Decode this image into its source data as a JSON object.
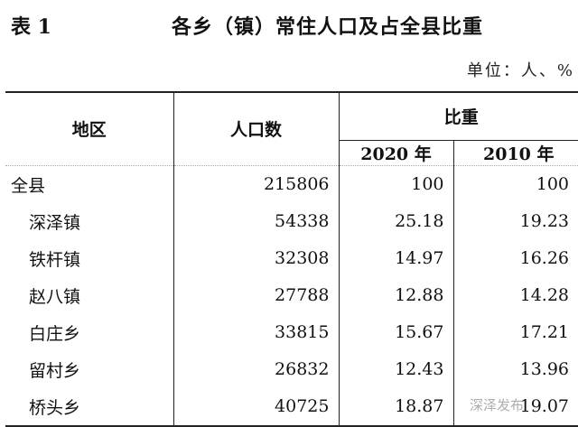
{
  "caption": {
    "label": "表 1",
    "title": "各乡（镇）常住人口及占全县比重",
    "unit": "单位：人、%"
  },
  "headers": {
    "region": "地区",
    "population": "人口数",
    "share": "比重",
    "y2020": "2020 年",
    "y2010": "2010 年"
  },
  "rows": [
    {
      "region": "全县",
      "population": "215806",
      "y2020": "100",
      "y2010": "100"
    },
    {
      "region": "深泽镇",
      "population": "54338",
      "y2020": "25.18",
      "y2010": "19.23"
    },
    {
      "region": "铁杆镇",
      "population": "32308",
      "y2020": "14.97",
      "y2010": "16.26"
    },
    {
      "region": "赵八镇",
      "population": "27788",
      "y2020": "12.88",
      "y2010": "14.28"
    },
    {
      "region": "白庄乡",
      "population": "33815",
      "y2020": "15.67",
      "y2010": "17.21"
    },
    {
      "region": "留村乡",
      "population": "26832",
      "y2020": "12.43",
      "y2010": "13.96"
    },
    {
      "region": "桥头乡",
      "population": "40725",
      "y2020": "18.87",
      "y2010": "19.07"
    }
  ],
  "watermark": "深泽发布"
}
